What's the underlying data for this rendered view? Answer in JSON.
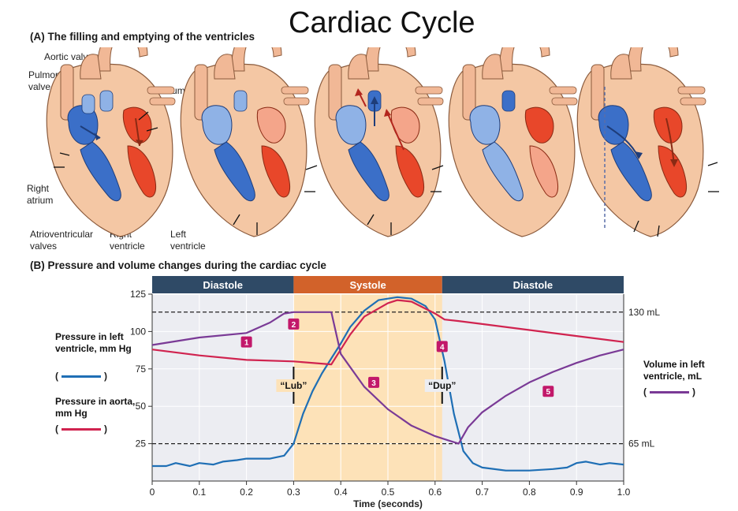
{
  "title": "Cardiac Cycle",
  "panel_a": {
    "heading": "(A) The filling and emptying of the ventricles",
    "labels": {
      "aortic_valve": "Aortic valve",
      "pulmonary_valve": "Pulmonary valve",
      "left_atrium": "Left atrium",
      "right_atrium": "Right atrium",
      "av_valves": "Atrioventricular valves",
      "right_ventricle": "Right ventricle",
      "left_ventricle": "Left ventricle"
    }
  },
  "panel_b": {
    "heading": "(B) Pressure and volume changes during the cardiac cycle",
    "phases": [
      "Diastole",
      "Systole",
      "Diastole"
    ],
    "phase_colors": {
      "diastole": "#2f4a66",
      "systole": "#d2622a"
    },
    "xlabel": "Time (seconds)",
    "left_legend": {
      "pressure_ventricle": "Pressure in left ventricle, mm Hg",
      "pressure_aorta": "Pressure in aorta, mm Hg"
    },
    "right_legend": {
      "volume": "Volume in left ventricle, mL"
    },
    "volume_marks": {
      "high": "130 mL",
      "low": "65 mL"
    },
    "sounds": [
      "“Lub”",
      "“Dup”"
    ],
    "markers": [
      "1",
      "2",
      "3",
      "4",
      "5"
    ],
    "colors": {
      "ventricle": "#1f6fb5",
      "aorta": "#d0234f",
      "volume": "#7a3a96",
      "marker": "#c2186a"
    }
  },
  "chart_data": {
    "type": "line",
    "xlabel": "Time (seconds)",
    "xlim": [
      0,
      1.0
    ],
    "ylim": [
      0,
      125
    ],
    "xticks": [
      "0",
      "0.1",
      "0.2",
      "0.3",
      "0.4",
      "0.5",
      "0.6",
      "0.7",
      "0.8",
      "0.9",
      "1.0"
    ],
    "yticks": [
      "25",
      "50",
      "75",
      "100",
      "125"
    ],
    "series": [
      {
        "name": "Pressure in left ventricle, mm Hg",
        "x": [
          0,
          0.03,
          0.05,
          0.08,
          0.1,
          0.13,
          0.15,
          0.18,
          0.2,
          0.25,
          0.28,
          0.3,
          0.32,
          0.34,
          0.36,
          0.38,
          0.4,
          0.42,
          0.45,
          0.48,
          0.52,
          0.55,
          0.58,
          0.6,
          0.62,
          0.64,
          0.66,
          0.68,
          0.7,
          0.75,
          0.8,
          0.85,
          0.88,
          0.9,
          0.92,
          0.95,
          0.97,
          1.0
        ],
        "y": [
          10,
          10,
          12,
          10,
          12,
          11,
          13,
          14,
          15,
          15,
          17,
          25,
          45,
          60,
          72,
          82,
          92,
          103,
          114,
          121,
          123,
          122,
          117,
          108,
          80,
          45,
          20,
          12,
          9,
          7,
          7,
          8,
          9,
          12,
          13,
          11,
          12,
          11
        ]
      },
      {
        "name": "Pressure in aorta, mm Hg",
        "x": [
          0,
          0.1,
          0.2,
          0.3,
          0.38,
          0.4,
          0.42,
          0.45,
          0.5,
          0.52,
          0.55,
          0.6,
          0.62,
          0.65,
          0.7,
          0.8,
          0.9,
          1.0
        ],
        "y": [
          88,
          84,
          81,
          80,
          78,
          88,
          98,
          110,
          119,
          121,
          120,
          112,
          108,
          107,
          105,
          101,
          97,
          93
        ]
      },
      {
        "name": "Volume in left ventricle, mL",
        "x": [
          0,
          0.1,
          0.2,
          0.25,
          0.28,
          0.3,
          0.35,
          0.38,
          0.4,
          0.45,
          0.5,
          0.55,
          0.6,
          0.63,
          0.65,
          0.67,
          0.7,
          0.75,
          0.8,
          0.85,
          0.9,
          0.95,
          1.0
        ],
        "y": [
          91,
          96,
          99,
          106,
          112,
          113,
          113,
          113,
          85,
          63,
          48,
          37,
          30,
          27,
          25,
          36,
          46,
          57,
          66,
          73,
          79,
          84,
          88
        ]
      }
    ],
    "reference_lines": [
      {
        "label": "130 mL",
        "y": 113
      },
      {
        "label": "65 mL",
        "y": 25
      }
    ],
    "phases": [
      {
        "label": "Diastole",
        "x": [
          0,
          0.3
        ]
      },
      {
        "label": "Systole",
        "x": [
          0.3,
          0.615
        ]
      },
      {
        "label": "Diastole",
        "x": [
          0.615,
          1.0
        ]
      }
    ],
    "annotations": [
      {
        "label": "“Lub”",
        "x": 0.3
      },
      {
        "label": "“Dup”",
        "x": 0.615
      },
      {
        "label": "1",
        "x": 0.2,
        "y": 93
      },
      {
        "label": "2",
        "x": 0.3,
        "y": 105
      },
      {
        "label": "3",
        "x": 0.47,
        "y": 66
      },
      {
        "label": "4",
        "x": 0.615,
        "y": 90
      },
      {
        "label": "5",
        "x": 0.84,
        "y": 60
      }
    ],
    "grid": true
  }
}
